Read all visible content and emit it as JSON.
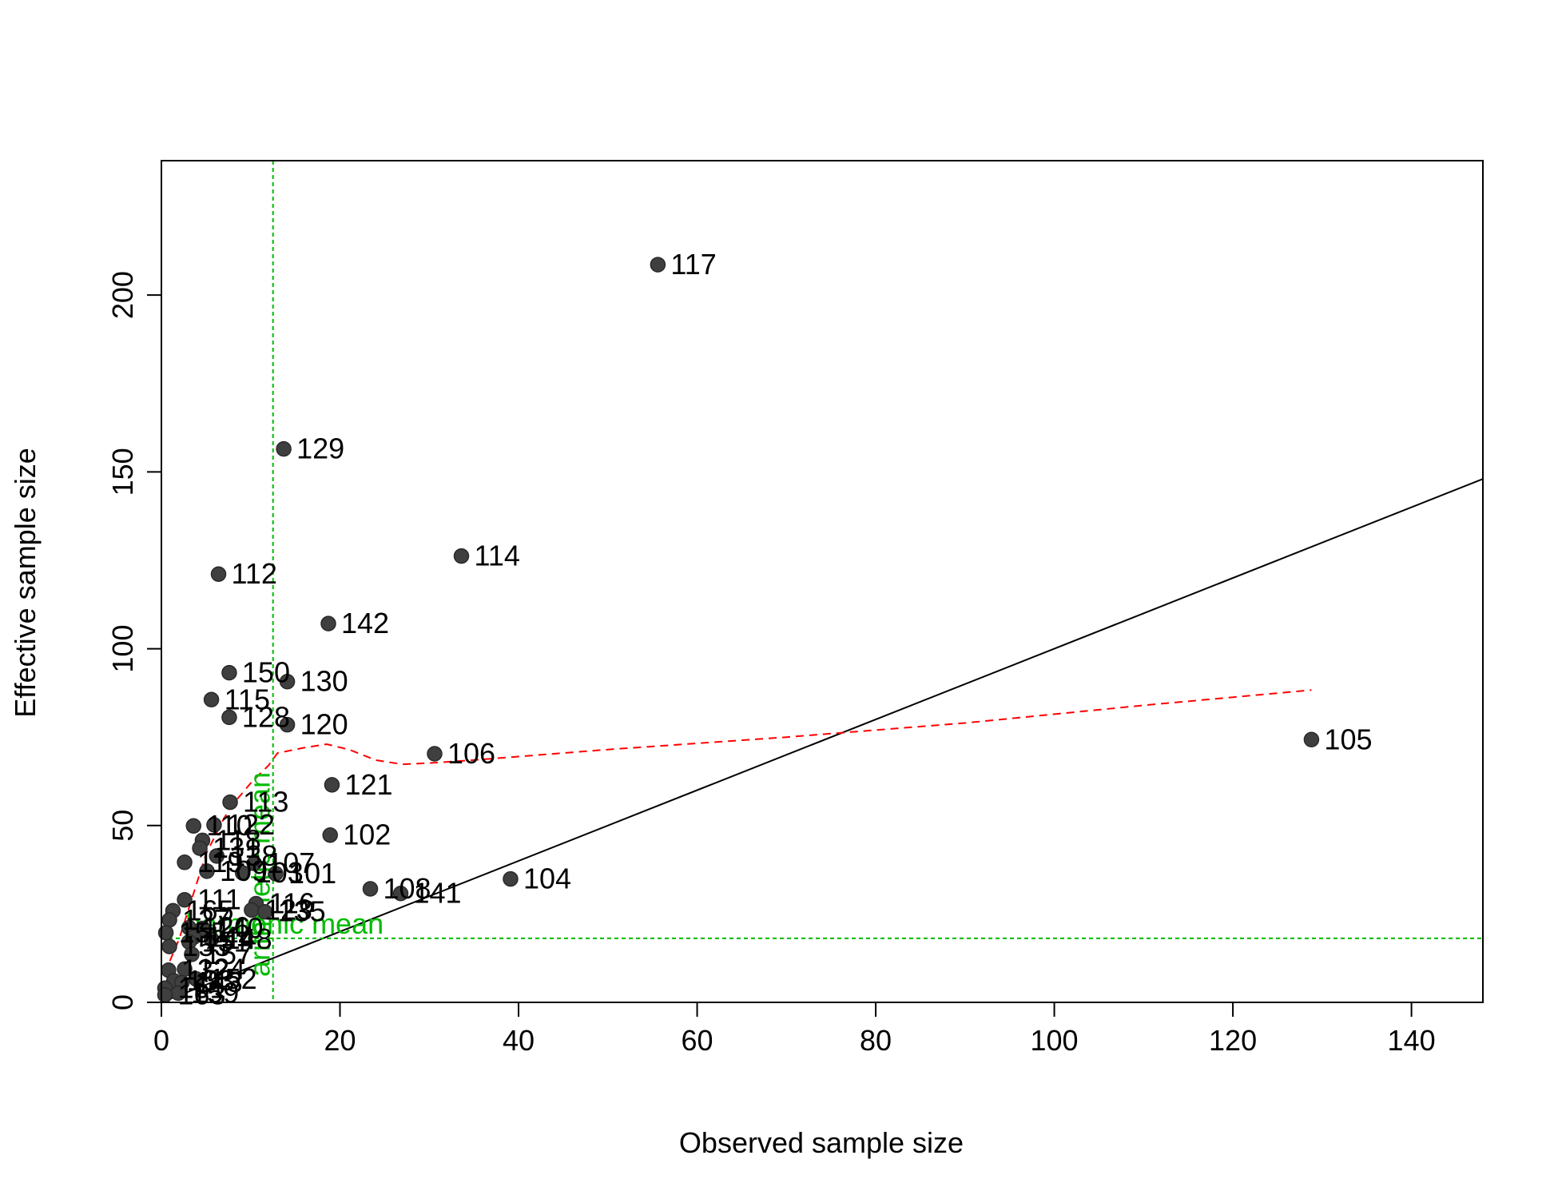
{
  "chart_data": {
    "type": "scatter",
    "xlabel": "Observed sample size",
    "ylabel": "Effective sample size",
    "xlim": [
      0,
      148
    ],
    "ylim": [
      0,
      238
    ],
    "x_ticks": [
      "0",
      "20",
      "40",
      "60",
      "80",
      "100",
      "120",
      "140"
    ],
    "x_tick_values": [
      0,
      20,
      40,
      60,
      80,
      100,
      120,
      140
    ],
    "y_ticks": [
      "0",
      "50",
      "100",
      "150",
      "200"
    ],
    "y_tick_values": [
      0,
      50,
      100,
      150,
      200
    ],
    "colors": {
      "points": "#3f3f3f",
      "identity_line": "#000000",
      "smoother": "#ff0000",
      "reference": "#00bb00"
    },
    "points": [
      {
        "label": "117",
        "x": 55.6,
        "y": 208.6
      },
      {
        "label": "129",
        "x": 13.7,
        "y": 156.5
      },
      {
        "label": "114",
        "x": 33.6,
        "y": 126.2
      },
      {
        "label": "112",
        "x": 6.4,
        "y": 121.1
      },
      {
        "label": "142",
        "x": 18.7,
        "y": 107.1
      },
      {
        "label": "150",
        "x": 7.6,
        "y": 93.2
      },
      {
        "label": "130",
        "x": 14.1,
        "y": 90.7
      },
      {
        "label": "115",
        "x": 5.6,
        "y": 85.6
      },
      {
        "label": "128",
        "x": 7.6,
        "y": 80.6
      },
      {
        "label": "120",
        "x": 14.1,
        "y": 78.5
      },
      {
        "label": "105",
        "x": 128.8,
        "y": 74.3
      },
      {
        "label": "106",
        "x": 30.6,
        "y": 70.3
      },
      {
        "label": "121",
        "x": 19.1,
        "y": 61.5
      },
      {
        "label": "113",
        "x": 7.7,
        "y": 56.6
      },
      {
        "label": "110",
        "x": 3.6,
        "y": 49.9
      },
      {
        "label": "122",
        "x": 5.9,
        "y": 50.2
      },
      {
        "label": "102",
        "x": 18.9,
        "y": 47.3
      },
      {
        "label": "118",
        "x": 4.6,
        "y": 45.8
      },
      {
        "label": "131",
        "x": 4.3,
        "y": 43.6
      },
      {
        "label": "138",
        "x": 6.2,
        "y": 41.4
      },
      {
        "label": "119",
        "x": 2.6,
        "y": 39.6
      },
      {
        "label": "107",
        "x": 10.4,
        "y": 39.3
      },
      {
        "label": "101",
        "x": 12.8,
        "y": 36.4
      },
      {
        "label": "109",
        "x": 5.1,
        "y": 37.1
      },
      {
        "label": "103",
        "x": 9.1,
        "y": 36.6
      },
      {
        "label": "104",
        "x": 39.1,
        "y": 34.9
      },
      {
        "label": "108",
        "x": 23.4,
        "y": 32.1
      },
      {
        "label": "141",
        "x": 26.8,
        "y": 30.8
      },
      {
        "label": "111",
        "x": 2.6,
        "y": 29.0
      },
      {
        "label": "116",
        "x": 10.6,
        "y": 27.9
      },
      {
        "label": "123",
        "x": 10.1,
        "y": 26.1
      },
      {
        "label": "135",
        "x": 11.6,
        "y": 25.6
      },
      {
        "label": "165",
        "x": 1.3,
        "y": 25.9
      },
      {
        "label": "127",
        "x": 0.9,
        "y": 23.3
      },
      {
        "label": "126",
        "x": 3.1,
        "y": 21.1
      },
      {
        "label": "140",
        "x": 4.6,
        "y": 20.9
      },
      {
        "label": "155",
        "x": 0.5,
        "y": 19.7
      },
      {
        "label": "144",
        "x": 3.6,
        "y": 18.4
      },
      {
        "label": "148",
        "x": 5.6,
        "y": 17.9
      },
      {
        "label": "151",
        "x": 3.1,
        "y": 17.1
      },
      {
        "label": "153",
        "x": 0.9,
        "y": 15.8
      },
      {
        "label": "157",
        "x": 3.4,
        "y": 13.6
      },
      {
        "label": "124",
        "x": 2.6,
        "y": 9.4
      },
      {
        "label": "132",
        "x": 0.8,
        "y": 9.1
      },
      {
        "label": "152",
        "x": 3.9,
        "y": 6.6
      },
      {
        "label": "133",
        "x": 1.4,
        "y": 6.1
      },
      {
        "label": "143",
        "x": 2.3,
        "y": 5.6
      },
      {
        "label": "161",
        "x": 0.4,
        "y": 4.0
      },
      {
        "label": "159",
        "x": 1.9,
        "y": 2.6
      },
      {
        "label": "163",
        "x": 0.4,
        "y": 2.1
      }
    ],
    "identity_line": [
      [
        0,
        0
      ],
      [
        148,
        148
      ]
    ],
    "smoother": [
      [
        0.3,
        8.2
      ],
      [
        1.0,
        12
      ],
      [
        2,
        18
      ],
      [
        3,
        26
      ],
      [
        4,
        34
      ],
      [
        5,
        42
      ],
      [
        6,
        47
      ],
      [
        7,
        52
      ],
      [
        8,
        56
      ],
      [
        9,
        59
      ],
      [
        10,
        62
      ],
      [
        11,
        64.5
      ],
      [
        12,
        67
      ],
      [
        13,
        70.5
      ],
      [
        14,
        71
      ],
      [
        16,
        72
      ],
      [
        18.5,
        73
      ],
      [
        21,
        71.5
      ],
      [
        24,
        68.5
      ],
      [
        27,
        67.3
      ],
      [
        31,
        67.8
      ],
      [
        36,
        68.7
      ],
      [
        50,
        71.5
      ],
      [
        70,
        75
      ],
      [
        90,
        79
      ],
      [
        110,
        84
      ],
      [
        128.8,
        88.3
      ]
    ],
    "reference_lines": {
      "arithmetic_mean": {
        "label": "arithmetic mean",
        "x": 12.5
      },
      "harmonic_mean": {
        "label": "harmonic mean",
        "y": 18.1
      }
    }
  }
}
